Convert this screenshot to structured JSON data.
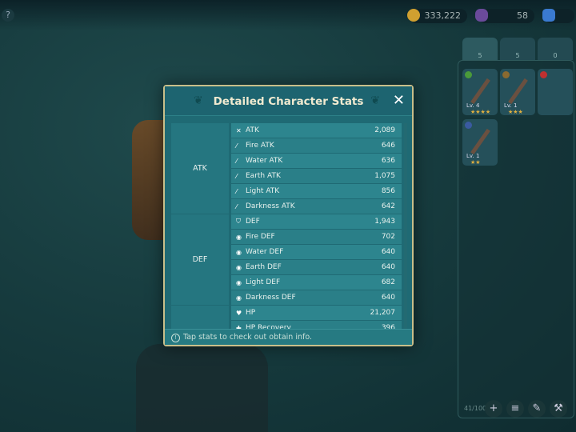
{
  "currency": {
    "gold": "333,222",
    "crystal": "58"
  },
  "tabs": [
    {
      "icon": "sword-icon",
      "count": "5"
    },
    {
      "icon": "shield-icon",
      "count": "5"
    },
    {
      "icon": "accessory-icon",
      "count": "0"
    }
  ],
  "inventory": {
    "items": [
      {
        "level": "Lv. 4",
        "stars": "★★★★",
        "element": "#4a9a3a"
      },
      {
        "level": "Lv. 1",
        "stars": "★★★",
        "element": "#8a6a30"
      },
      {
        "level": "Lv. 1",
        "stars": "★★",
        "element": "#3a5aa0"
      }
    ],
    "count": "41/100"
  },
  "dialog": {
    "title": "Detailed Character Stats",
    "close": "✕",
    "footer": "Tap stats to check out obtain info.",
    "categories": [
      {
        "label": "ATK"
      },
      {
        "label": "DEF"
      },
      {
        "label": ""
      }
    ],
    "stats": [
      {
        "icon": "✕",
        "name": "ATK",
        "value": "2,089"
      },
      {
        "icon": "⁄",
        "name": "Fire ATK",
        "value": "646"
      },
      {
        "icon": "⁄",
        "name": "Water ATK",
        "value": "636"
      },
      {
        "icon": "⁄",
        "name": "Earth ATK",
        "value": "1,075"
      },
      {
        "icon": "⁄",
        "name": "Light ATK",
        "value": "856"
      },
      {
        "icon": "⁄",
        "name": "Darkness ATK",
        "value": "642"
      },
      {
        "icon": "⛉",
        "name": "DEF",
        "value": "1,943"
      },
      {
        "icon": "◉",
        "name": "Fire DEF",
        "value": "702"
      },
      {
        "icon": "◉",
        "name": "Water DEF",
        "value": "640"
      },
      {
        "icon": "◉",
        "name": "Earth DEF",
        "value": "640"
      },
      {
        "icon": "◉",
        "name": "Light DEF",
        "value": "682"
      },
      {
        "icon": "◉",
        "name": "Darkness DEF",
        "value": "640"
      },
      {
        "icon": "♥",
        "name": "HP",
        "value": "21,207"
      },
      {
        "icon": "✚",
        "name": "HP Recovery",
        "value": "396"
      }
    ]
  }
}
